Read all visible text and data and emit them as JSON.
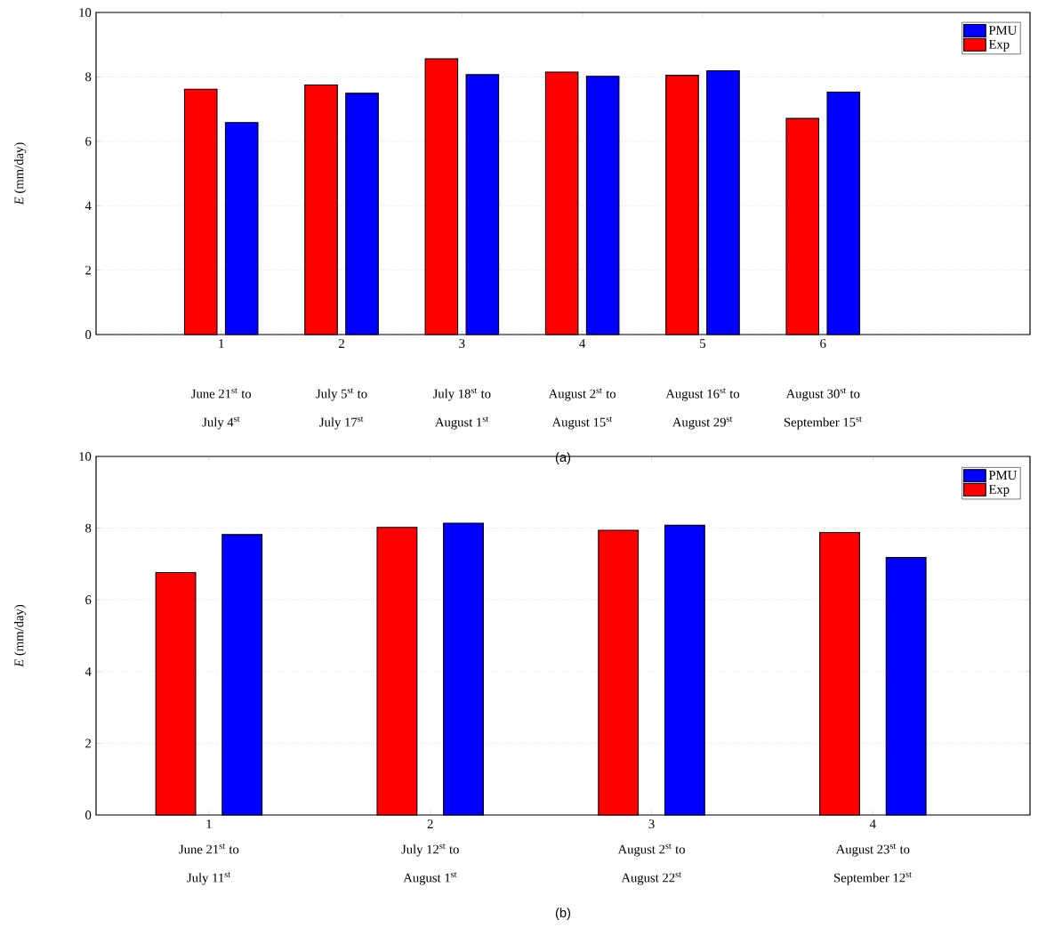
{
  "chart_data": [
    {
      "type": "bar",
      "categories": [
        "1",
        "2",
        "3",
        "4",
        "5",
        "6"
      ],
      "series": [
        {
          "name": "Exp",
          "color": "#ff0000",
          "values": [
            7.62,
            7.75,
            8.56,
            8.15,
            8.05,
            6.71
          ]
        },
        {
          "name": "PMU",
          "color": "#0000ff",
          "values": [
            6.58,
            7.49,
            8.07,
            8.02,
            8.19,
            7.53
          ]
        }
      ],
      "ylabel": "*E* (mm/day)",
      "ylim": [
        0,
        10
      ],
      "yticks": [
        0,
        2,
        4,
        6,
        8,
        10
      ],
      "grid": "y",
      "legend": "top right",
      "annotations": [
        "June 21$^{st}$ to",
        "July 4$^{st}$",
        "July 5$^{st}$ to",
        "July 17$^{st}$",
        "July 18$^{st}$ to",
        "August 1$^{st}$",
        "August 2$^{st}$ to",
        "August 15$^{st}$",
        "August 16$^{st}$ to",
        "August 29$^{st}$",
        "August 30$^{st}$ to",
        "September 15$^{st}$",
        "(a)"
      ]
    },
    {
      "type": "bar",
      "categories": [
        "1",
        "2",
        "3",
        "4"
      ],
      "series": [
        {
          "name": "Exp",
          "color": "#ff0000",
          "values": [
            6.76,
            8.02,
            7.94,
            7.88
          ]
        },
        {
          "name": "PMU",
          "color": "#0000ff",
          "values": [
            7.82,
            8.14,
            8.08,
            7.18
          ]
        }
      ],
      "ylabel": "*E* (mm/day)",
      "ylim": [
        0,
        10
      ],
      "yticks": [
        0,
        2,
        4,
        6,
        8,
        10
      ],
      "grid": "y",
      "legend": "top right",
      "annotations": [
        "June 21$^{st}$ to",
        "July 11$^{st}$",
        "July 12$^{st}$ to",
        "August 1$^{st}$",
        "August 2$^{st}$ to",
        "August 22$^{st}$",
        "August 23$^{st}$ to",
        "September 12$^{st}$",
        "(b)"
      ]
    }
  ]
}
